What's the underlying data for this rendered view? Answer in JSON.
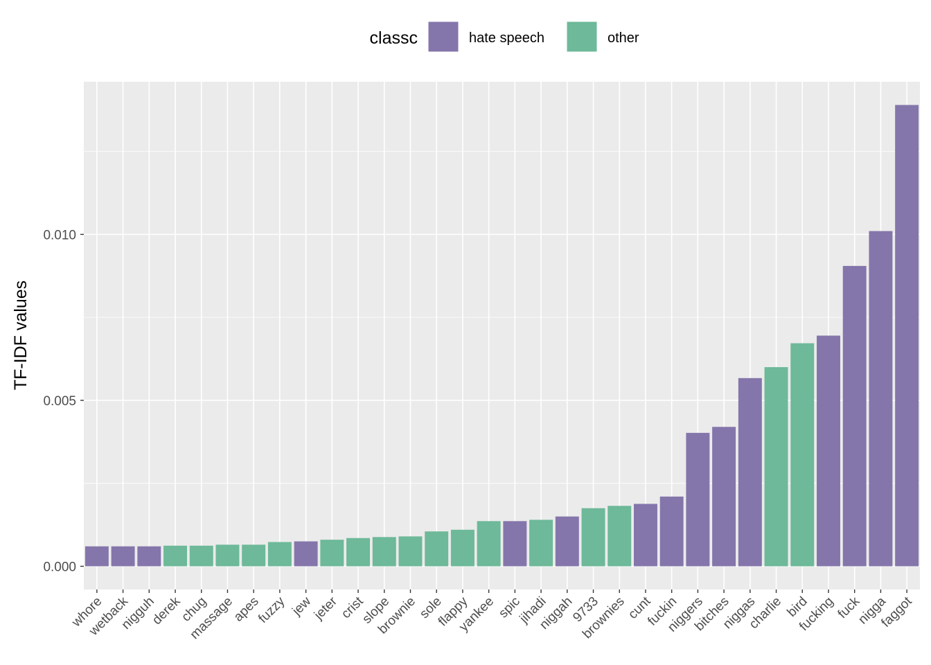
{
  "chart_data": {
    "type": "bar",
    "ylabel": "TF-IDF values",
    "xlabel": "",
    "ylim": [
      -0.0007,
      0.0146
    ],
    "y_ticks": [
      {
        "value": 0.0,
        "label": "0.000"
      },
      {
        "value": 0.005,
        "label": "0.005"
      },
      {
        "value": 0.01,
        "label": "0.010"
      }
    ],
    "grid": true,
    "legend": {
      "title": "classc",
      "placement": "top",
      "entries": [
        {
          "label": "hate speech",
          "color": "#8476AB"
        },
        {
          "label": "other",
          "color": "#6DB999"
        }
      ]
    },
    "bars": [
      {
        "category": "whore",
        "value": 0.0006,
        "class": "hate speech"
      },
      {
        "category": "wetback",
        "value": 0.0006,
        "class": "hate speech"
      },
      {
        "category": "nigguh",
        "value": 0.0006,
        "class": "hate speech"
      },
      {
        "category": "derek",
        "value": 0.00062,
        "class": "other"
      },
      {
        "category": "chug",
        "value": 0.00062,
        "class": "other"
      },
      {
        "category": "massage",
        "value": 0.00065,
        "class": "other"
      },
      {
        "category": "apes",
        "value": 0.00065,
        "class": "other"
      },
      {
        "category": "fuzzy",
        "value": 0.00073,
        "class": "other"
      },
      {
        "category": "jew",
        "value": 0.00075,
        "class": "hate speech"
      },
      {
        "category": "jeter",
        "value": 0.0008,
        "class": "other"
      },
      {
        "category": "crist",
        "value": 0.00085,
        "class": "other"
      },
      {
        "category": "slope",
        "value": 0.00088,
        "class": "other"
      },
      {
        "category": "brownie",
        "value": 0.0009,
        "class": "other"
      },
      {
        "category": "sole",
        "value": 0.00105,
        "class": "other"
      },
      {
        "category": "flappy",
        "value": 0.0011,
        "class": "other"
      },
      {
        "category": "yankee",
        "value": 0.00136,
        "class": "other"
      },
      {
        "category": "spic",
        "value": 0.00136,
        "class": "hate speech"
      },
      {
        "category": "jihadi",
        "value": 0.0014,
        "class": "other"
      },
      {
        "category": "niggah",
        "value": 0.0015,
        "class": "hate speech"
      },
      {
        "category": "9733",
        "value": 0.00175,
        "class": "other"
      },
      {
        "category": "brownies",
        "value": 0.00182,
        "class": "other"
      },
      {
        "category": "cunt",
        "value": 0.00188,
        "class": "hate speech"
      },
      {
        "category": "fuckin",
        "value": 0.0021,
        "class": "hate speech"
      },
      {
        "category": "niggers",
        "value": 0.00402,
        "class": "hate speech"
      },
      {
        "category": "bitches",
        "value": 0.0042,
        "class": "hate speech"
      },
      {
        "category": "niggas",
        "value": 0.00567,
        "class": "hate speech"
      },
      {
        "category": "charlie",
        "value": 0.006,
        "class": "other"
      },
      {
        "category": "bird",
        "value": 0.00672,
        "class": "other"
      },
      {
        "category": "fucking",
        "value": 0.00695,
        "class": "hate speech"
      },
      {
        "category": "fuck",
        "value": 0.00905,
        "class": "hate speech"
      },
      {
        "category": "nigga",
        "value": 0.0101,
        "class": "hate speech"
      },
      {
        "category": "faggot",
        "value": 0.0139,
        "class": "hate speech"
      }
    ]
  }
}
